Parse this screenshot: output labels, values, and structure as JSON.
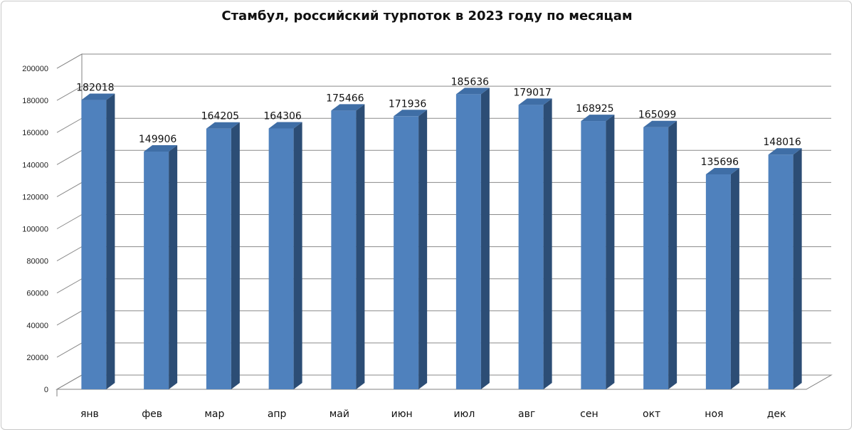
{
  "chart_data": {
    "type": "bar",
    "title": "Стамбул, российский турпоток в 2023 году по месяцам",
    "xlabel": "",
    "ylabel": "",
    "categories": [
      "янв",
      "фев",
      "мар",
      "апр",
      "май",
      "июн",
      "июл",
      "авг",
      "сен",
      "окт",
      "ноя",
      "дек"
    ],
    "values": [
      182018,
      149906,
      164205,
      164306,
      175466,
      171936,
      185636,
      179017,
      168925,
      165099,
      135696,
      148016
    ],
    "ylim": [
      0,
      200000
    ],
    "yticks": [
      0,
      20000,
      40000,
      60000,
      80000,
      100000,
      120000,
      140000,
      160000,
      180000,
      200000
    ],
    "grid": true,
    "style": "3d-column",
    "bar_color": "#4f81bd",
    "bar_side_color": "#2c4d75",
    "bar_top_color": "#3f6ea6",
    "data_labels": true
  }
}
